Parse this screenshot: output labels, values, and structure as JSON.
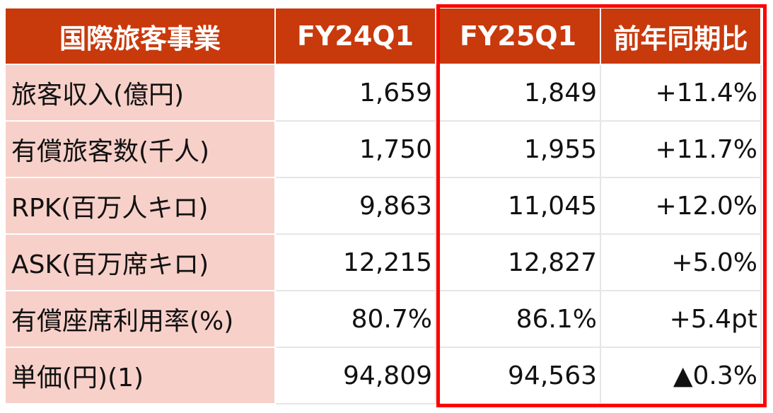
{
  "table": {
    "headers": [
      "国際旅客事業",
      "FY24Q1",
      "FY25Q1",
      "前年同期比"
    ],
    "rows": [
      {
        "label": "旅客収入(億円)",
        "fy24q1": "1,659",
        "fy25q1": "1,849",
        "yoy": "+11.4%"
      },
      {
        "label": "有償旅客数(千人)",
        "fy24q1": "1,750",
        "fy25q1": "1,955",
        "yoy": "+11.7%"
      },
      {
        "label": "RPK(百万人キロ)",
        "fy24q1": "9,863",
        "fy25q1": "11,045",
        "yoy": "+12.0%"
      },
      {
        "label": "ASK(百万席キロ)",
        "fy24q1": "12,215",
        "fy25q1": "12,827",
        "yoy": "+5.0%"
      },
      {
        "label": "有償座席利用率(%)",
        "fy24q1": "80.7%",
        "fy25q1": "86.1%",
        "yoy": "+5.4pt"
      },
      {
        "label": "単価(円)(1)",
        "fy24q1": "94,809",
        "fy25q1": "94,563",
        "yoy": "▲0.3%"
      }
    ]
  },
  "colors": {
    "header_bg": "#c8390c",
    "label_bg": "#f7d0c9",
    "highlight_border": "#ff0000"
  }
}
